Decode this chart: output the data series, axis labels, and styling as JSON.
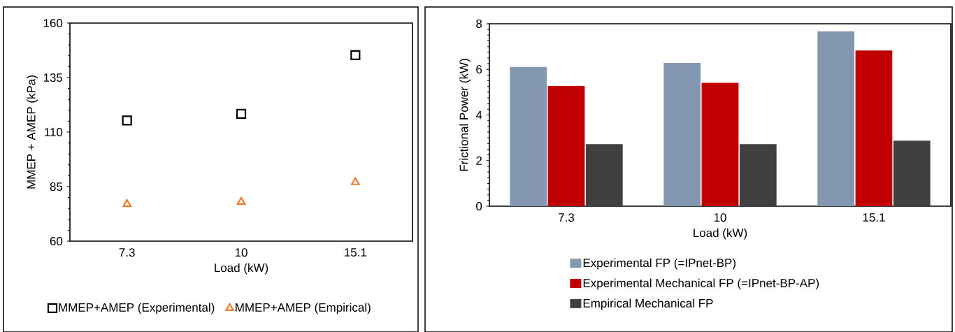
{
  "chart_data": [
    {
      "type": "scatter",
      "xlabel": "Load (kW)",
      "ylabel": "MMEP + AMEP (kPa)",
      "categories": [
        "7.3",
        "10",
        "15.1"
      ],
      "series": [
        {
          "name": "MMEP+AMEP (Experimental)",
          "color": "#000000",
          "marker": "square",
          "values": [
            115.3,
            118.4,
            145.3
          ]
        },
        {
          "name": "MMEP+AMEP (Empirical)",
          "color": "#ed7d31",
          "marker": "triangle",
          "values": [
            77,
            78,
            87
          ]
        }
      ],
      "ylim": [
        60,
        160
      ],
      "yticks": [
        60,
        85,
        110,
        135,
        160
      ],
      "grid": false,
      "legend": "bottom"
    },
    {
      "type": "bar",
      "xlabel": "Load (kW)",
      "ylabel": "Frictional Power (kW)",
      "categories": [
        "7.3",
        "10",
        "15.1"
      ],
      "series": [
        {
          "name": "Experimental FP (=IPnet-BP)",
          "color": "#8497b0",
          "values": [
            6.11,
            6.28,
            7.67
          ]
        },
        {
          "name": "Experimental Mechanical FP (=IPnet-BP-AP)",
          "color": "#c00000",
          "values": [
            5.27,
            5.41,
            6.83
          ]
        },
        {
          "name": "Empirical Mechanical FP",
          "color": "#404040",
          "values": [
            2.72,
            2.72,
            2.87
          ]
        }
      ],
      "ylim": [
        0,
        8
      ],
      "yticks": [
        0,
        2,
        4,
        6,
        8
      ],
      "grid": false,
      "legend": "bottom"
    }
  ]
}
